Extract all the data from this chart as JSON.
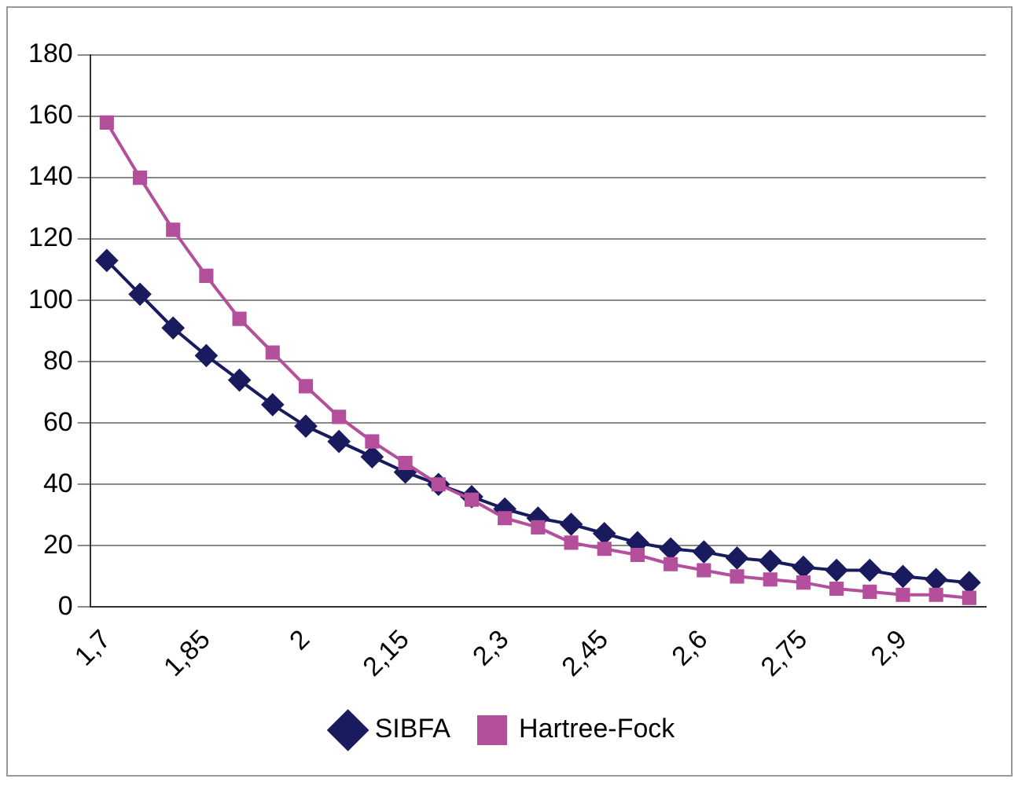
{
  "chart_data": {
    "type": "line",
    "categories": [
      "1,7",
      null,
      null,
      "1,85",
      null,
      null,
      "2",
      null,
      null,
      "2,15",
      null,
      null,
      "2,3",
      null,
      null,
      "2,45",
      null,
      null,
      "2,6",
      null,
      null,
      "2,75",
      null,
      null,
      "2,9",
      null,
      null
    ],
    "series": [
      {
        "name": "SIBFA",
        "color": "#1a1a5e",
        "marker": "diamond",
        "values": [
          113,
          102,
          91,
          82,
          74,
          66,
          59,
          54,
          49,
          44,
          40,
          36,
          32,
          29,
          27,
          24,
          21,
          19,
          18,
          16,
          15,
          13,
          12,
          12,
          10,
          9,
          8
        ]
      },
      {
        "name": "Hartree-Fock",
        "color": "#b44f9c",
        "marker": "square",
        "values": [
          158,
          140,
          123,
          108,
          94,
          83,
          72,
          62,
          54,
          47,
          40,
          35,
          29,
          26,
          21,
          19,
          17,
          14,
          12,
          10,
          9,
          8,
          6,
          5,
          4,
          4,
          3
        ]
      }
    ],
    "ylim": [
      0,
      180
    ],
    "yticks": [
      0,
      20,
      40,
      60,
      80,
      100,
      120,
      140,
      160,
      180
    ],
    "grid": "y",
    "legend": "bottom",
    "line_style": "solid"
  }
}
